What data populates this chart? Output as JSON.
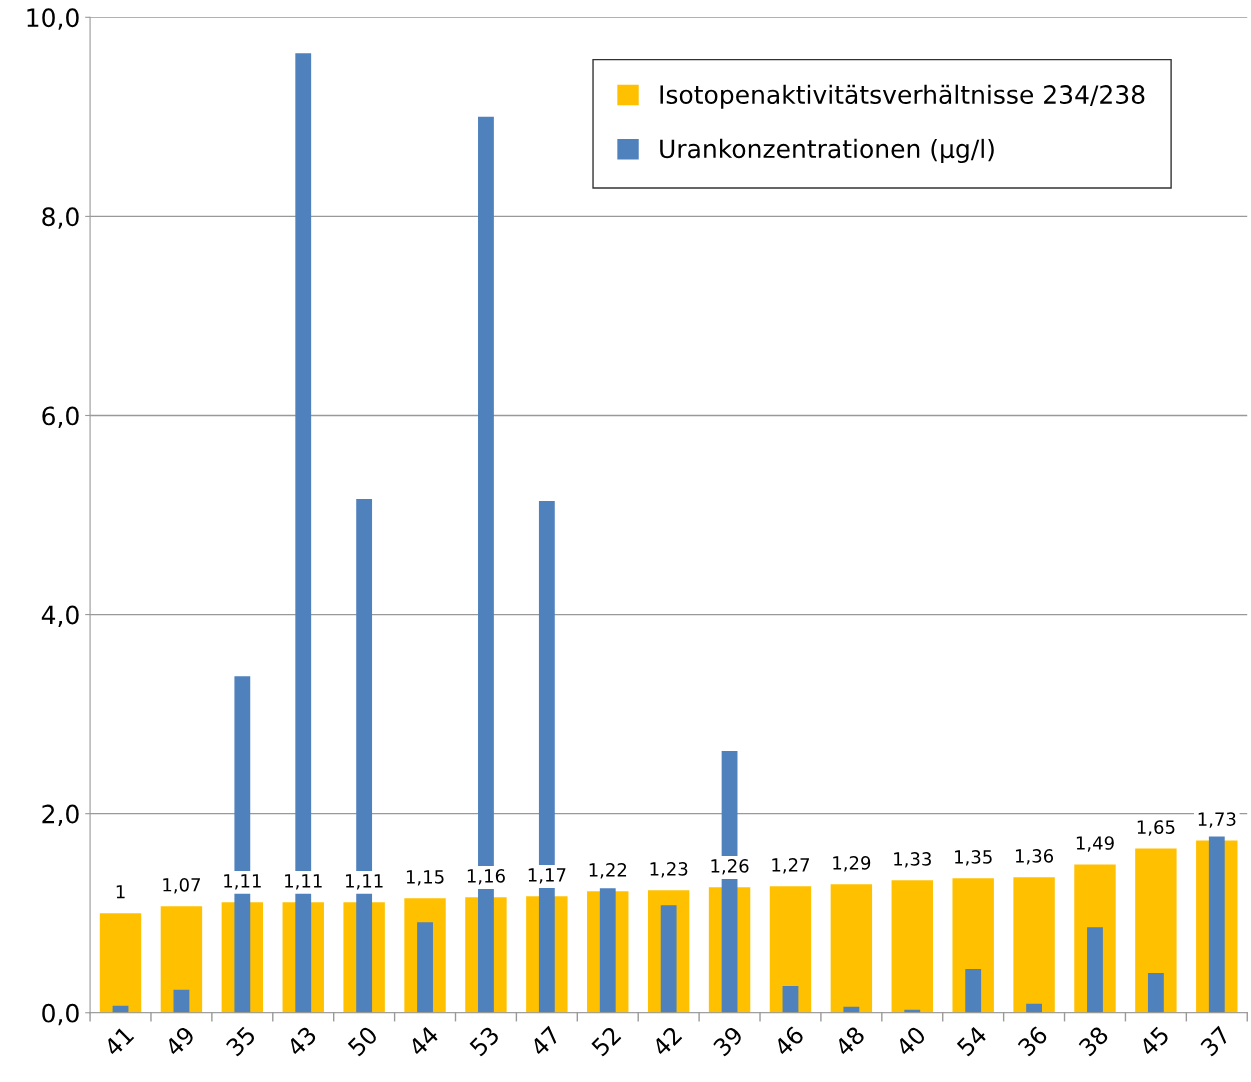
{
  "chart_data": {
    "type": "bar",
    "categories": [
      "41",
      "49",
      "35",
      "43",
      "50",
      "44",
      "53",
      "47",
      "52",
      "42",
      "39",
      "46",
      "48",
      "40",
      "54",
      "36",
      "38",
      "45",
      "37"
    ],
    "series": [
      {
        "name": "Isotopenaktivitätsverhältnisse 234/238",
        "color": "#ffc000",
        "values": [
          1,
          1.07,
          1.11,
          1.11,
          1.11,
          1.15,
          1.16,
          1.17,
          1.22,
          1.23,
          1.26,
          1.27,
          1.29,
          1.33,
          1.35,
          1.36,
          1.49,
          1.65,
          1.73
        ],
        "value_labels": [
          "1",
          "1,07",
          "1,11",
          "1,11",
          "1,11",
          "1,15",
          "1,16",
          "1,17",
          "1,22",
          "1,23",
          "1,26",
          "1,27",
          "1,29",
          "1,33",
          "1,35",
          "1,36",
          "1,49",
          "1,65",
          "1,73"
        ]
      },
      {
        "name": "Urankonzentrationen (µg/l)",
        "color": "#4f81bd",
        "values": [
          0.07,
          0.23,
          3.38,
          9.64,
          5.16,
          0.91,
          9.0,
          5.14,
          1.25,
          1.08,
          2.63,
          0.27,
          0.06,
          0.03,
          0.44,
          0.09,
          0.86,
          0.4,
          1.77
        ]
      }
    ],
    "ylim": [
      0,
      10
    ],
    "yticks": [
      {
        "value": 0,
        "label": "0,0"
      },
      {
        "value": 2,
        "label": "2,0"
      },
      {
        "value": 4,
        "label": "4,0"
      },
      {
        "value": 6,
        "label": "6,0"
      },
      {
        "value": 8,
        "label": "8,0"
      },
      {
        "value": 10,
        "label": "10,0"
      }
    ],
    "grid": "y",
    "legend": "top right"
  }
}
